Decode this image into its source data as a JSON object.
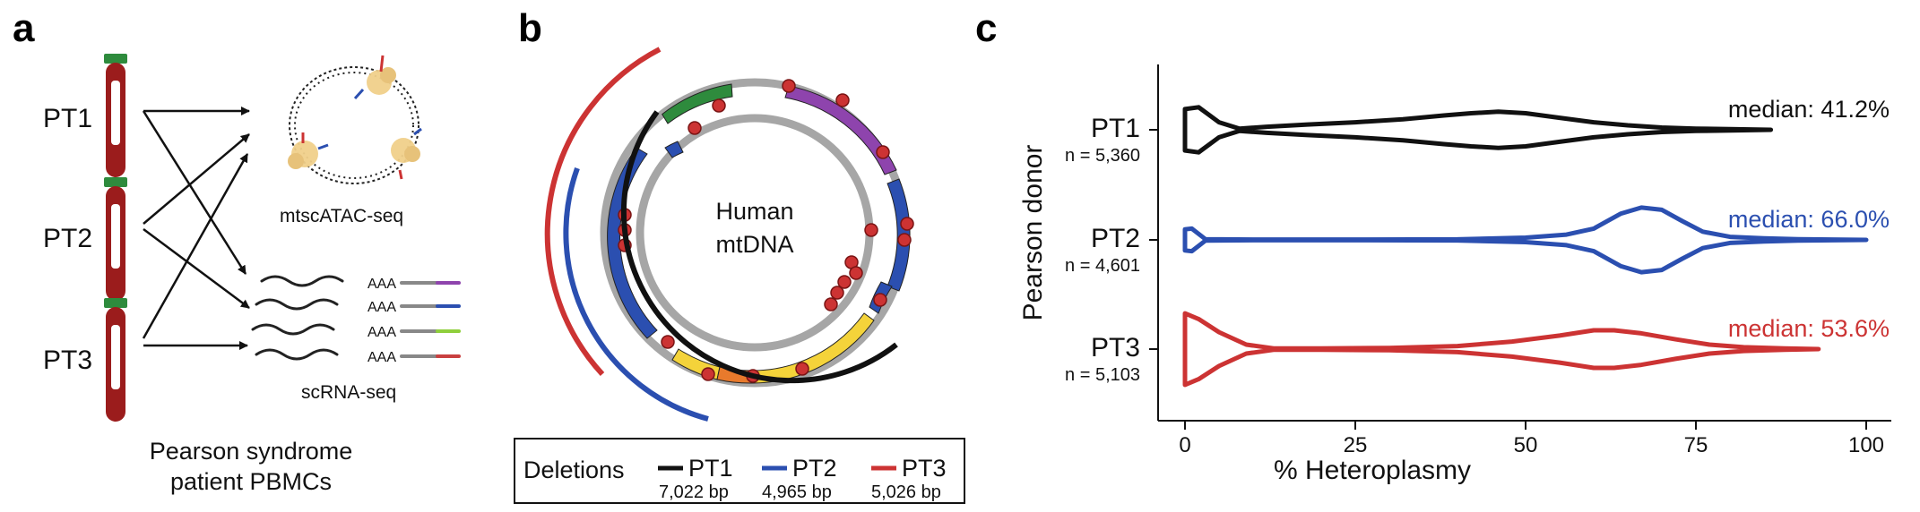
{
  "panels": {
    "a": {
      "letter": "a",
      "patients": [
        "PT1",
        "PT2",
        "PT3"
      ],
      "assay_top": "mtscATAC-seq",
      "assay_bottom": "scRNA-seq",
      "polya": "AAA",
      "caption_line1": "Pearson syndrome",
      "caption_line2": "patient PBMCs",
      "barcode_colors": [
        "#8e44ad",
        "#2b4fb0",
        "#8fcf3c",
        "#c94040"
      ]
    },
    "b": {
      "letter": "b",
      "center_line1": "Human",
      "center_line2": "mtDNA",
      "legend": {
        "title": "Deletions",
        "entries": [
          {
            "name": "PT1",
            "size": "7,022 bp",
            "color": "#111111"
          },
          {
            "name": "PT2",
            "size": "4,965 bp",
            "color": "#2b4fb0"
          },
          {
            "name": "PT3",
            "size": "5,026 bp",
            "color": "#cc3333"
          }
        ]
      }
    },
    "c": {
      "letter": "c"
    }
  },
  "chart_data": {
    "type": "violin",
    "xlabel": "% Heteroplasmy",
    "ylabel": "Pearson donor",
    "xlim": [
      0,
      100
    ],
    "xticks": [
      0,
      25,
      50,
      75,
      100
    ],
    "orientation": "horizontal",
    "series": [
      {
        "name": "PT1",
        "n_label": "n = 5,360",
        "median_label": "median: 41.2%",
        "median": 41.2,
        "color": "#111111",
        "x_min": 0,
        "x_max": 86,
        "density": [
          [
            0,
            0.55
          ],
          [
            2,
            0.6
          ],
          [
            5,
            0.2
          ],
          [
            8,
            0.03
          ],
          [
            12,
            0.08
          ],
          [
            18,
            0.14
          ],
          [
            25,
            0.2
          ],
          [
            32,
            0.28
          ],
          [
            38,
            0.38
          ],
          [
            42,
            0.44
          ],
          [
            46,
            0.48
          ],
          [
            50,
            0.44
          ],
          [
            55,
            0.32
          ],
          [
            60,
            0.2
          ],
          [
            65,
            0.12
          ],
          [
            70,
            0.06
          ],
          [
            75,
            0.03
          ],
          [
            80,
            0.02
          ],
          [
            86,
            0.0
          ]
        ]
      },
      {
        "name": "PT2",
        "n_label": "n = 4,601",
        "median_label": "median: 66.0%",
        "median": 66.0,
        "color": "#2b4fb0",
        "x_min": 0,
        "x_max": 100,
        "density": [
          [
            0,
            0.28
          ],
          [
            1,
            0.3
          ],
          [
            3,
            0.02
          ],
          [
            10,
            0.01
          ],
          [
            25,
            0.01
          ],
          [
            40,
            0.015
          ],
          [
            50,
            0.06
          ],
          [
            56,
            0.14
          ],
          [
            60,
            0.3
          ],
          [
            64,
            0.7
          ],
          [
            67,
            0.86
          ],
          [
            70,
            0.8
          ],
          [
            73,
            0.5
          ],
          [
            76,
            0.22
          ],
          [
            80,
            0.08
          ],
          [
            85,
            0.04
          ],
          [
            90,
            0.02
          ],
          [
            95,
            0.01
          ],
          [
            100,
            0.0
          ]
        ]
      },
      {
        "name": "PT3",
        "n_label": "n = 5,103",
        "median_label": "median: 53.6%",
        "median": 53.6,
        "color": "#cc3333",
        "x_min": 0,
        "x_max": 93,
        "density": [
          [
            0,
            0.95
          ],
          [
            2,
            0.8
          ],
          [
            5,
            0.45
          ],
          [
            9,
            0.12
          ],
          [
            13,
            0.02
          ],
          [
            20,
            0.02
          ],
          [
            30,
            0.03
          ],
          [
            40,
            0.08
          ],
          [
            48,
            0.2
          ],
          [
            55,
            0.36
          ],
          [
            60,
            0.5
          ],
          [
            63,
            0.5
          ],
          [
            67,
            0.42
          ],
          [
            72,
            0.26
          ],
          [
            77,
            0.12
          ],
          [
            82,
            0.05
          ],
          [
            88,
            0.02
          ],
          [
            93,
            0.0
          ]
        ]
      }
    ]
  }
}
